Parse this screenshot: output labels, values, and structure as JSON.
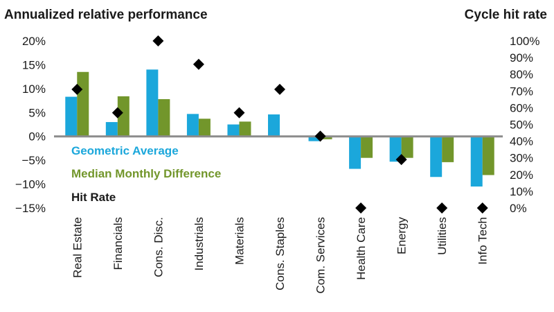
{
  "chart_data": {
    "type": "bar",
    "title_left": "Annualized relative performance",
    "title_right": "Cycle hit rate",
    "categories": [
      "Real Estate",
      "Financials",
      "Cons. Disc.",
      "Industrials",
      "Materials",
      "Cons. Staples",
      "Com. Services",
      "Health Care",
      "Energy",
      "Utilities",
      "Info Tech"
    ],
    "series": [
      {
        "name": "Geometric Average",
        "color": "#1ba7db",
        "axis": "left",
        "values": [
          8.3,
          3.0,
          14.0,
          4.7,
          2.5,
          4.6,
          -1.0,
          -6.8,
          -5.3,
          -8.5,
          -10.5
        ]
      },
      {
        "name": "Median Monthly Difference",
        "color": "#72962b",
        "axis": "left",
        "values": [
          13.5,
          8.4,
          7.8,
          3.7,
          3.1,
          0.0,
          -0.6,
          -4.5,
          -4.5,
          -5.4,
          -8.1
        ]
      },
      {
        "name": "Hit Rate",
        "color": "#000000",
        "axis": "right",
        "marker": "diamond",
        "values": [
          71,
          57,
          100,
          86,
          57,
          71,
          43,
          0,
          29,
          0,
          0
        ]
      }
    ],
    "left_axis": {
      "ylim": [
        -15,
        20
      ],
      "ticks": [
        "20%",
        "15%",
        "10%",
        "5%",
        "0%",
        "−5%",
        "−10%",
        "−15%"
      ]
    },
    "right_axis": {
      "ylim": [
        0,
        100
      ],
      "ticks": [
        "100%",
        "90%",
        "80%",
        "70%",
        "60%",
        "50%",
        "40%",
        "30%",
        "20%",
        "10%",
        "0%"
      ]
    },
    "legend": [
      "Geometric Average",
      "Median Monthly Difference",
      "Hit Rate"
    ],
    "legend_placement": "lower-left, inside plot",
    "zero_line_color": "#8c8c8c"
  }
}
